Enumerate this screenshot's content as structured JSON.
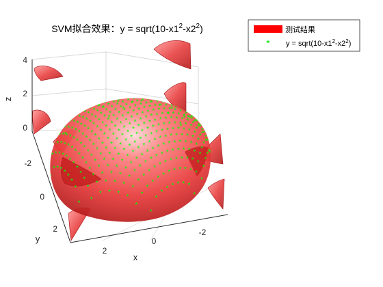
{
  "chart_data": {
    "type": "scatter",
    "subtype": "3d-surface-with-scatter",
    "title_main": "SVM拟合效果：y = sqrt(10-x1",
    "title_sup1": "2",
    "title_mid": "-x2",
    "title_sup2": "2",
    "title_end": ")",
    "xlabel": "x",
    "ylabel": "y",
    "zlabel": "z",
    "x_ticks": [
      "2",
      "0",
      "-2"
    ],
    "y_ticks": [
      "-2",
      "0",
      "2"
    ],
    "z_ticks": [
      "4",
      "2",
      "0"
    ],
    "xlim": [
      -3.16,
      3.16
    ],
    "ylim": [
      -3.16,
      3.16
    ],
    "zlim": [
      0,
      4
    ],
    "grid": true,
    "legend_position": "top-right",
    "series": [
      {
        "name": "测试结果",
        "kind": "surface",
        "color": "#ff0000",
        "function": "sqrt(10-x1^2-x2^2)"
      },
      {
        "name_main": "y = sqrt(10-x1",
        "name_sup1": "2",
        "name_mid": "-x2",
        "name_sup2": "2",
        "name_end": ")",
        "kind": "scatter",
        "marker": "asterisk",
        "color": "#00ff00",
        "function": "sqrt(10-x1^2-x2^2)",
        "sample_range": [
          -3,
          3
        ],
        "sample_step": 0.25
      }
    ]
  }
}
